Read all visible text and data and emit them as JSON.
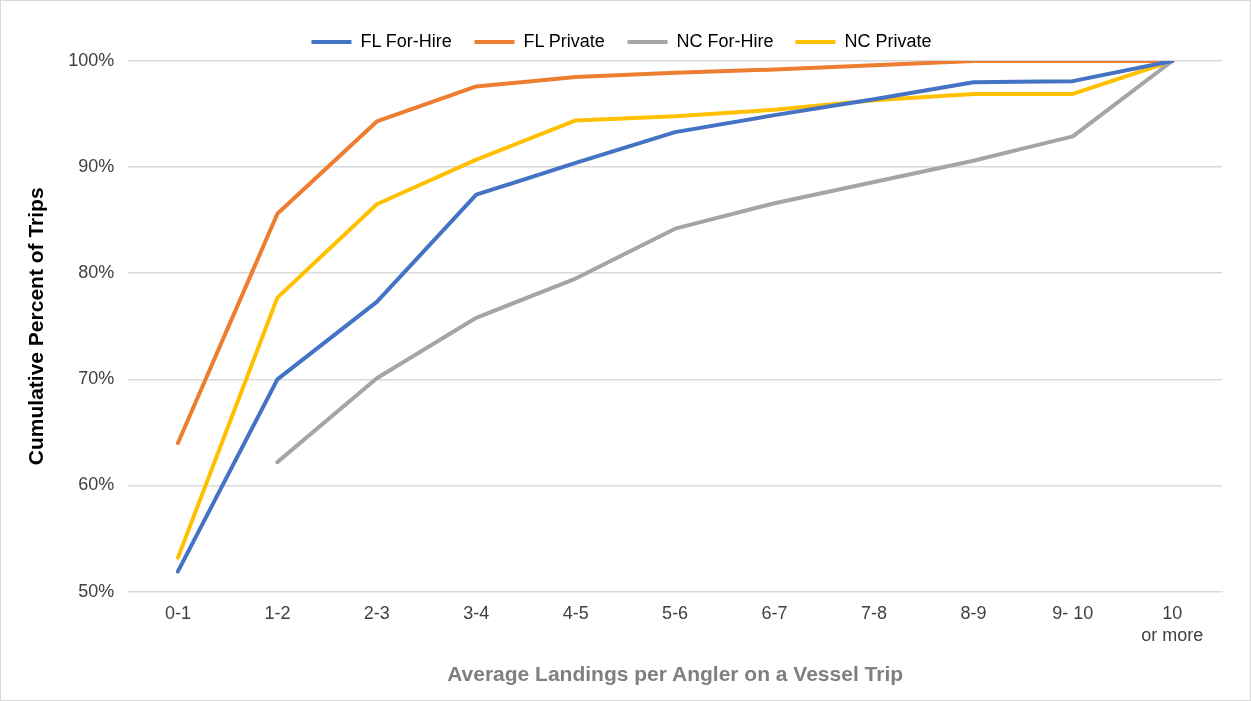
{
  "chart_data": {
    "type": "line",
    "xlabel": "Average Landings per Angler on a Vessel Trip",
    "ylabel": "Cumulative Percent of Trips",
    "categories": [
      "0-1",
      "1-2",
      "2-3",
      "3-4",
      "4-5",
      "5-6",
      "6-7",
      "7-8",
      "8-9",
      "9- 10",
      "10 or more"
    ],
    "series": [
      {
        "name": "FL For-Hire",
        "color": "#4472c4",
        "values": [
          51.9,
          70.0,
          77.3,
          87.4,
          90.4,
          93.3,
          94.9,
          96.4,
          98.0,
          98.1,
          100
        ]
      },
      {
        "name": "FL Private",
        "color": "#ed7d31",
        "values": [
          64.0,
          85.6,
          94.3,
          97.6,
          98.5,
          98.9,
          99.2,
          99.6,
          100,
          100,
          100
        ]
      },
      {
        "name": "NC For-Hire",
        "color": "#a5a5a5",
        "values": [
          null,
          62.2,
          70.1,
          75.8,
          79.5,
          84.2,
          86.6,
          88.6,
          90.6,
          92.9,
          100
        ]
      },
      {
        "name": "NC Private",
        "color": "#ffc000",
        "values": [
          53.2,
          77.7,
          86.5,
          90.7,
          94.4,
          94.8,
          95.4,
          96.3,
          96.9,
          96.9,
          100
        ]
      }
    ],
    "ylim": [
      50,
      100
    ],
    "yticks": [
      {
        "value": 50,
        "label": "50%"
      },
      {
        "value": 60,
        "label": "60%"
      },
      {
        "value": 70,
        "label": "70%"
      },
      {
        "value": 80,
        "label": "80%"
      },
      {
        "value": 90,
        "label": "90%"
      },
      {
        "value": 100,
        "label": "100%"
      }
    ],
    "grid": "y",
    "legend": "top",
    "marker": "none",
    "line_style": "solid"
  }
}
